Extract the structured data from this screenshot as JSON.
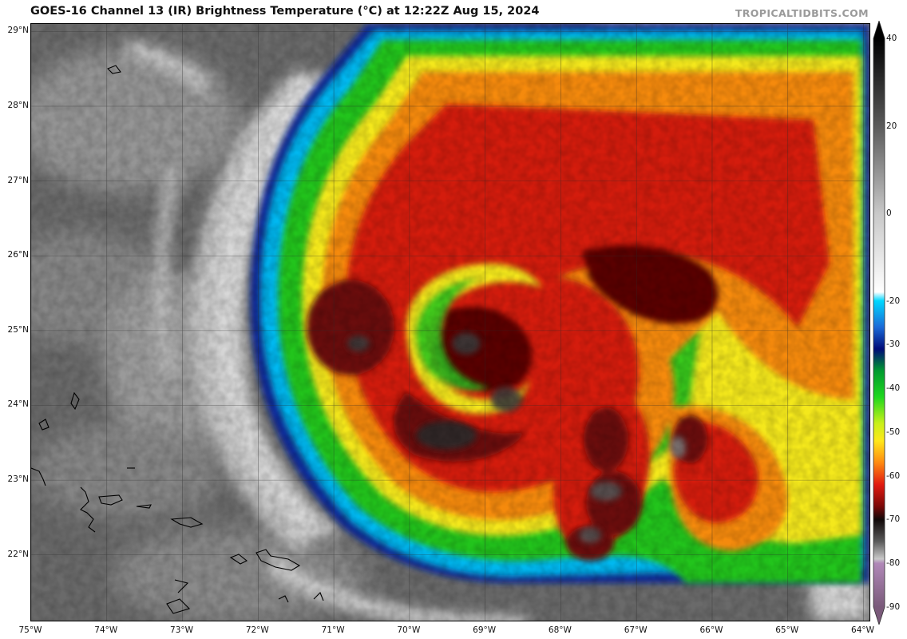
{
  "header": {
    "title": "GOES-16 Channel 13 (IR) Brightness Temperature (°C) at 12:22Z Aug 15, 2024",
    "source": "TROPICALTIDBITS.COM"
  },
  "map": {
    "lon_range": [
      -75.0,
      -63.9
    ],
    "lat_range": [
      21.1,
      29.1
    ],
    "lat_labels": [
      "29°N",
      "28°N",
      "27°N",
      "26°N",
      "25°N",
      "24°N",
      "23°N",
      "22°N"
    ],
    "lat_values": [
      29,
      28,
      27,
      26,
      25,
      24,
      23,
      22
    ],
    "lon_labels": [
      "75°W",
      "74°W",
      "73°W",
      "72°W",
      "71°W",
      "70°W",
      "69°W",
      "68°W",
      "67°W",
      "66°W",
      "65°W",
      "64°W"
    ],
    "lon_values": [
      -75,
      -74,
      -73,
      -72,
      -71,
      -70,
      -69,
      -68,
      -67,
      -66,
      -65,
      -64
    ],
    "storm_center": {
      "lon": -69.3,
      "lat": 24.6
    },
    "colors": {
      "warm_background": "#6e6e6e",
      "cloud_gray": "#d8d8d8",
      "cyan": "#00c8ff",
      "blue": "#0a2a9a",
      "green": "#22c41c",
      "yellow": "#f4e81a",
      "orange": "#f58a10",
      "red": "#d41a10",
      "dark_red": "#6a0808",
      "black": "#151515",
      "coldest_gray": "#b8b8b8"
    }
  },
  "colorbar": {
    "min": -90,
    "max": 40,
    "labels": [
      "40",
      "20",
      "0",
      "-20",
      "-30",
      "-40",
      "-50",
      "-60",
      "-70",
      "-80",
      "-90"
    ],
    "values": [
      40,
      20,
      0,
      -20,
      -30,
      -40,
      -50,
      -60,
      -70,
      -80,
      -90
    ],
    "stops": [
      {
        "t": 40,
        "color": "#000000"
      },
      {
        "t": 20,
        "color": "#5a5a5a"
      },
      {
        "t": 0,
        "color": "#c8c8c8"
      },
      {
        "t": -18,
        "color": "#ffffff"
      },
      {
        "t": -20,
        "color": "#00d8ff"
      },
      {
        "t": -26,
        "color": "#1a6ad8"
      },
      {
        "t": -31,
        "color": "#000a78"
      },
      {
        "t": -36,
        "color": "#009a30"
      },
      {
        "t": -42,
        "color": "#1ed81e"
      },
      {
        "t": -48,
        "color": "#c8f01a"
      },
      {
        "t": -52,
        "color": "#ffe81a"
      },
      {
        "t": -57,
        "color": "#ff8a10"
      },
      {
        "t": -62,
        "color": "#e21a10"
      },
      {
        "t": -67,
        "color": "#7a0808"
      },
      {
        "t": -70,
        "color": "#100808"
      },
      {
        "t": -75,
        "color": "#5a5a5a"
      },
      {
        "t": -79,
        "color": "#c8c8c8"
      },
      {
        "t": -80,
        "color": "#b088b8"
      },
      {
        "t": -90,
        "color": "#7a5a7a"
      }
    ]
  }
}
